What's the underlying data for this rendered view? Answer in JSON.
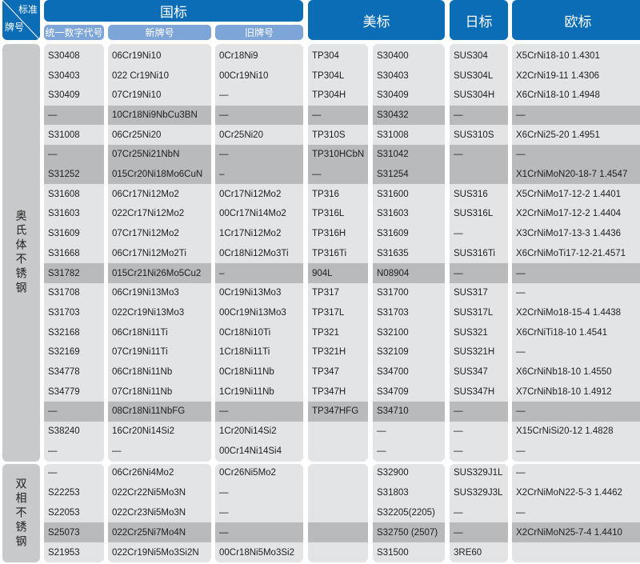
{
  "corner": {
    "top": "标准",
    "bottom": "牌号"
  },
  "headers": {
    "gb": "国标",
    "astm": "美标",
    "jis": "日标",
    "en": "欧标"
  },
  "subheaders": {
    "uns_cn": "统一数字代号",
    "new_grade": "新牌号",
    "old_grade": "旧牌号"
  },
  "colors": {
    "header": "#0a6db5",
    "subheader": "#7da5d8",
    "panel": "#e3e4e6",
    "highlight": "#b9babc"
  },
  "sections": [
    {
      "label": "奥氏体不锈钢",
      "highlight_rows": [
        3,
        5,
        6,
        11,
        18
      ],
      "rows": [
        [
          "S30408",
          "06Cr19Ni10",
          "0Cr18Ni9",
          "TP304",
          "S30400",
          "SUS304",
          "X5CrNi18-10 1.4301"
        ],
        [
          "S30403",
          "022 Cr19Ni10",
          "00Cr19Ni10",
          "TP304L",
          "S30403",
          "SUS304L",
          "X2CrNi19-11  1.4306"
        ],
        [
          "S30409",
          "07Cr19Ni10",
          "—",
          "TP304H",
          "S30409",
          "SUS304H",
          "X6CrNi18-10  1.4948"
        ],
        [
          "—",
          "10Cr18Ni9NbCu3BN",
          "—",
          "—",
          "S30432",
          "—",
          "—"
        ],
        [
          "S31008",
          "06Cr25Ni20",
          "0Cr25Ni20",
          "TP310S",
          "S31008",
          "SUS310S",
          "X6CrNi25-20 1.4951"
        ],
        [
          "—",
          "07Cr25Ni21NbN",
          "—",
          "TP310HCbN",
          "S31042",
          "—",
          "—"
        ],
        [
          "S31252",
          "015Cr20Ni18Mo6CuN",
          "–",
          "—",
          "S31254",
          "",
          "X1CrNiMoN20-18-7 1.4547"
        ],
        [
          "S31608",
          "06Cr17Ni12Mo2",
          "0Cr17Ni12Mo2",
          "TP316",
          "S31600",
          "SUS316",
          "X5CrNiMo17-12-2 1.4401"
        ],
        [
          "S31603",
          "022Cr17Ni12Mo2",
          "00Cr17Ni14Mo2",
          "TP316L",
          "S31603",
          "SUS316L",
          "X2CrNiMo17-12-2 1.4404"
        ],
        [
          "S31609",
          "07Cr17Ni12Mo2",
          "1Cr17Ni12Mo2",
          "TP316H",
          "S31609",
          "—",
          "X3CrNiMo17-13-3 1.4436"
        ],
        [
          "S31668",
          "06Cr17Ni12Mo2Ti",
          "0Cr18Ni12Mo3Ti",
          "TP316Ti",
          "S31635",
          "SUS316Ti",
          "X6CrNiMoTi17-12-21.4571"
        ],
        [
          "S31782",
          "015Cr21Ni26Mo5Cu2",
          "–",
          "904L",
          "N08904",
          "—",
          "—"
        ],
        [
          "S31708",
          "06Cr19Ni13Mo3",
          "0Cr19Ni13Mo3",
          "TP317",
          "S31700",
          "SUS317",
          "—"
        ],
        [
          "S31703",
          "022Cr19Ni13Mo3",
          "00Cr19Ni13Mo3",
          "TP317L",
          "S31703",
          "SUS317L",
          "X2CrNiMo18-15-4 1.4438"
        ],
        [
          "S32168",
          "06Cr18Ni11Ti",
          "0Cr18Ni10Ti",
          "TP321",
          "S32100",
          "SUS321",
          "X6CrNiTi18-10 1.4541"
        ],
        [
          "S32169",
          "07Cr19Ni11Ti",
          "1Cr18Ni11Ti",
          "TP321H",
          "S32109",
          "SUS321H",
          "—"
        ],
        [
          "S34778",
          "06Cr18Ni11Nb",
          "0Cr18Ni11Nb",
          "TP347",
          "S34700",
          "SUS347",
          "X6CrNiNb18-10 1.4550"
        ],
        [
          "S34779",
          "07Cr18Ni11Nb",
          "1Cr19Ni11Nb",
          "TP347H",
          "S34709",
          "SUS347H",
          "X7CrNiNb18-10 1.4912"
        ],
        [
          "—",
          "08Cr18Ni11NbFG",
          "—",
          "TP347HFG",
          "S34710",
          "—",
          "—"
        ],
        [
          "S38240",
          "16Cr20Ni14Si2",
          "1Cr20Ni14Si2",
          "",
          "—",
          "—",
          "X15CrNiSi20-12 1.4828"
        ],
        [
          "—",
          "—",
          "00Cr14Ni14Si4",
          "",
          "—",
          "—",
          "—"
        ]
      ]
    },
    {
      "label": "双相不锈钢",
      "highlight_rows": [
        3
      ],
      "rows": [
        [
          "—",
          "06Cr26Ni4Mo2",
          "0Cr26Ni5Mo2",
          "",
          "S32900",
          "SUS329J1L",
          "—"
        ],
        [
          "S22253",
          "022Cr22Ni5Mo3N",
          "—",
          "",
          "S31803",
          "SUS329J3L",
          "X2CrNiMoN22-5-3 1.4462"
        ],
        [
          "S22053",
          "022Cr23Ni5Mo3N",
          "—",
          "",
          "S32205(2205)",
          "—",
          "—"
        ],
        [
          "S25073",
          "022Cr25Ni7Mo4N",
          "—",
          "",
          "S32750 (2507)",
          "—",
          "X2CrNiMoN25-7-4 1.4410"
        ],
        [
          "S21953",
          "022Cr19Ni5Mo3Si2N",
          "00Cr18Ni5Mo3Si2",
          "",
          "S31500",
          "3RE60",
          ""
        ]
      ]
    }
  ]
}
